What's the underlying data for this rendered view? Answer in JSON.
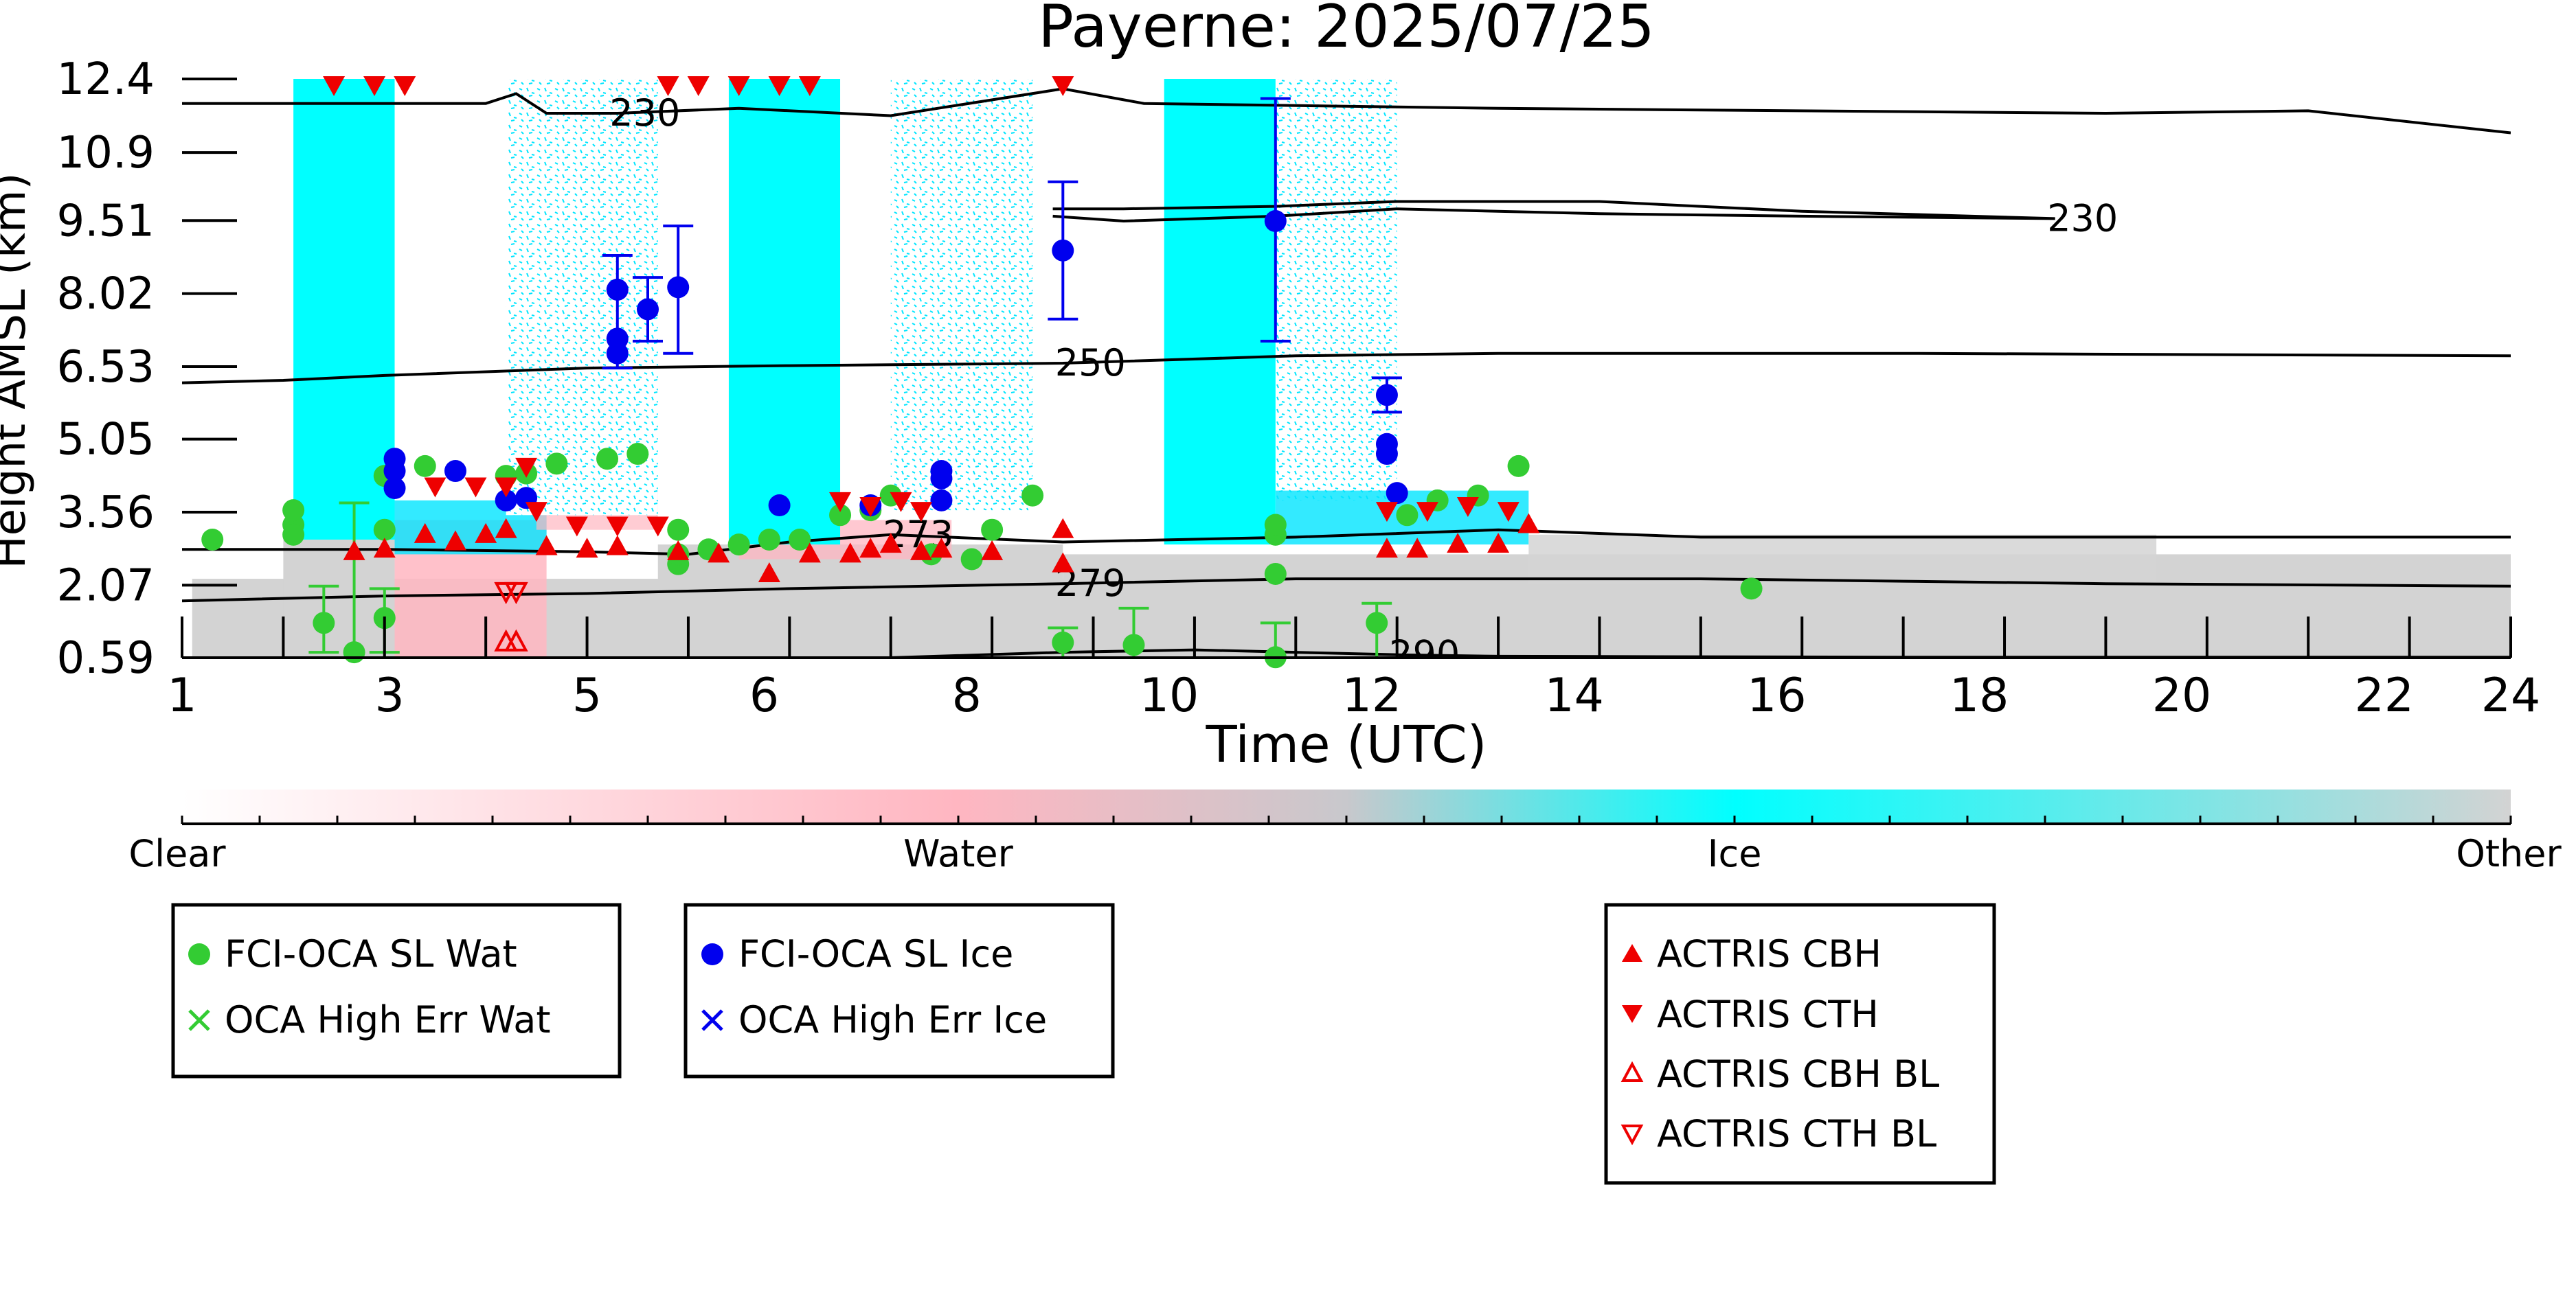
{
  "chart_data": {
    "type": "scatter",
    "title": "Payerne: 2025/07/25",
    "xlabel": "Time (UTC)",
    "ylabel": "Height AMSL (km)",
    "xlim": [
      1,
      24
    ],
    "ylim": [
      0.59,
      12.4
    ],
    "x_ticks": [
      "1",
      "3",
      "5",
      "6",
      "8",
      "10",
      "12",
      "14",
      "16",
      "18",
      "20",
      "22",
      "24"
    ],
    "y_ticks": [
      "0.59",
      "2.07",
      "3.56",
      "5.05",
      "6.53",
      "8.02",
      "9.51",
      "10.9",
      "12.4"
    ],
    "colorbar": {
      "labels": [
        "Clear",
        "Water",
        "Ice",
        "Other"
      ],
      "colors": [
        "#ffffff",
        "#ffb6c1",
        "#00ffff",
        "#d3d3d3"
      ]
    },
    "contours": [
      {
        "label": "230",
        "points": [
          [
            1,
            11.9
          ],
          [
            4,
            11.9
          ],
          [
            4.3,
            12.1
          ],
          [
            4.6,
            11.7
          ],
          [
            5.3,
            11.7
          ],
          [
            6.5,
            11.8
          ],
          [
            8,
            11.65
          ],
          [
            9.7,
            12.2
          ],
          [
            10.5,
            11.9
          ],
          [
            14,
            11.8
          ],
          [
            20,
            11.7
          ],
          [
            22,
            11.75
          ],
          [
            24,
            11.3
          ]
        ]
      },
      {
        "label": "230",
        "points": [
          [
            9.6,
            9.6
          ],
          [
            10.3,
            9.5
          ],
          [
            11.8,
            9.6
          ],
          [
            13,
            9.75
          ],
          [
            15,
            9.65
          ],
          [
            17,
            9.6
          ],
          [
            19.5,
            9.55
          ],
          [
            17,
            9.7
          ],
          [
            15,
            9.9
          ],
          [
            13,
            9.9
          ],
          [
            11.8,
            9.8
          ],
          [
            10.3,
            9.75
          ],
          [
            9.6,
            9.75
          ]
        ]
      },
      {
        "label": "250",
        "points": [
          [
            1,
            6.2
          ],
          [
            2,
            6.25
          ],
          [
            3,
            6.35
          ],
          [
            5,
            6.5
          ],
          [
            7,
            6.55
          ],
          [
            9.7,
            6.6
          ],
          [
            12,
            6.75
          ],
          [
            14,
            6.8
          ],
          [
            18,
            6.8
          ],
          [
            24,
            6.75
          ]
        ]
      },
      {
        "label": "273",
        "points": [
          [
            1,
            2.8
          ],
          [
            3,
            2.8
          ],
          [
            5,
            2.75
          ],
          [
            6,
            2.7
          ],
          [
            7,
            2.95
          ],
          [
            8,
            3.1
          ],
          [
            9.7,
            2.95
          ],
          [
            12,
            3.05
          ],
          [
            14,
            3.2
          ],
          [
            16,
            3.05
          ],
          [
            18,
            3.05
          ],
          [
            24,
            3.05
          ]
        ]
      },
      {
        "label": "279",
        "points": [
          [
            1,
            1.75
          ],
          [
            3,
            1.85
          ],
          [
            5,
            1.9
          ],
          [
            7,
            2.0
          ],
          [
            9.7,
            2.1
          ],
          [
            12,
            2.2
          ],
          [
            14,
            2.2
          ],
          [
            16,
            2.2
          ],
          [
            18,
            2.15
          ],
          [
            20,
            2.1
          ],
          [
            24,
            2.05
          ]
        ]
      },
      {
        "label": "290",
        "points": [
          [
            8,
            0.59
          ],
          [
            9.7,
            0.7
          ],
          [
            11,
            0.75
          ],
          [
            13,
            0.65
          ],
          [
            14,
            0.62
          ],
          [
            18,
            0.6
          ],
          [
            24,
            0.6
          ]
        ]
      }
    ],
    "series": [
      {
        "name": "FCI-OCA SL Wat",
        "color": "#33cc33",
        "marker": "circle",
        "points": [
          [
            1.3,
            3.0
          ],
          [
            2.1,
            3.3
          ],
          [
            2.1,
            3.6
          ],
          [
            2.1,
            3.1
          ],
          [
            2.4,
            1.3
          ],
          [
            2.7,
            0.7
          ],
          [
            3.0,
            1.4
          ],
          [
            3.0,
            3.2
          ],
          [
            3.0,
            4.3
          ],
          [
            3.4,
            4.5
          ],
          [
            4.2,
            4.3
          ],
          [
            4.4,
            4.35
          ],
          [
            4.7,
            4.55
          ],
          [
            5.2,
            4.65
          ],
          [
            5.5,
            4.75
          ],
          [
            5.9,
            2.5
          ],
          [
            5.9,
            2.7
          ],
          [
            5.9,
            3.2
          ],
          [
            6.2,
            2.8
          ],
          [
            6.5,
            2.9
          ],
          [
            6.8,
            3.0
          ],
          [
            7.1,
            3.0
          ],
          [
            7.5,
            3.5
          ],
          [
            7.8,
            3.6
          ],
          [
            8.0,
            3.9
          ],
          [
            8.4,
            2.7
          ],
          [
            8.8,
            2.6
          ],
          [
            9.0,
            3.2
          ],
          [
            9.4,
            3.9
          ],
          [
            9.7,
            0.9
          ],
          [
            10.4,
            0.85
          ],
          [
            11.8,
            3.1
          ],
          [
            11.8,
            3.3
          ],
          [
            11.8,
            2.3
          ],
          [
            11.8,
            0.6
          ],
          [
            12.8,
            1.3
          ],
          [
            13.1,
            3.5
          ],
          [
            13.4,
            3.8
          ],
          [
            13.8,
            3.9
          ],
          [
            14.2,
            4.5
          ],
          [
            16.5,
            2.0
          ]
        ]
      },
      {
        "name": "OCA High Err Wat",
        "color": "#33cc33",
        "marker": "x",
        "points": []
      },
      {
        "name": "FCI-OCA SL Ice",
        "color": "#0000ee",
        "marker": "circle",
        "points": [
          [
            3.1,
            4.65
          ],
          [
            3.1,
            4.4
          ],
          [
            3.1,
            4.05
          ],
          [
            3.7,
            4.4
          ],
          [
            4.2,
            3.8
          ],
          [
            4.4,
            3.85
          ],
          [
            5.3,
            8.1
          ],
          [
            5.3,
            7.1
          ],
          [
            5.3,
            6.8
          ],
          [
            5.6,
            7.7
          ],
          [
            5.9,
            8.15
          ],
          [
            6.9,
            3.7
          ],
          [
            7.8,
            3.7
          ],
          [
            8.5,
            4.4
          ],
          [
            8.5,
            4.25
          ],
          [
            8.5,
            3.8
          ],
          [
            9.7,
            8.9
          ],
          [
            11.8,
            9.5
          ],
          [
            12.9,
            5.95
          ],
          [
            12.9,
            4.95
          ],
          [
            12.9,
            4.75
          ],
          [
            13.0,
            3.95
          ]
        ]
      },
      {
        "name": "OCA High Err Ice",
        "color": "#0000ee",
        "marker": "x",
        "points": []
      },
      {
        "name": "ACTRIS CBH",
        "color": "#ee0000",
        "marker": "triangle-up",
        "points": [
          [
            2.7,
            2.75
          ],
          [
            3.0,
            2.8
          ],
          [
            3.4,
            3.1
          ],
          [
            3.7,
            2.95
          ],
          [
            4.0,
            3.1
          ],
          [
            4.2,
            3.2
          ],
          [
            4.6,
            2.85
          ],
          [
            5.0,
            2.8
          ],
          [
            5.3,
            2.85
          ],
          [
            5.9,
            2.75
          ],
          [
            6.3,
            2.7
          ],
          [
            6.8,
            2.3
          ],
          [
            7.2,
            2.7
          ],
          [
            7.6,
            2.7
          ],
          [
            7.8,
            2.8
          ],
          [
            8.0,
            2.9
          ],
          [
            8.3,
            2.75
          ],
          [
            8.5,
            2.8
          ],
          [
            9.0,
            2.75
          ],
          [
            9.7,
            3.2
          ],
          [
            9.7,
            2.5
          ],
          [
            12.9,
            2.8
          ],
          [
            13.2,
            2.8
          ],
          [
            13.6,
            2.9
          ],
          [
            14.0,
            2.9
          ],
          [
            14.3,
            3.3
          ]
        ]
      },
      {
        "name": "ACTRIS CTH",
        "color": "#ee0000",
        "marker": "triangle-down",
        "points": [
          [
            2.5,
            12.4
          ],
          [
            2.9,
            12.4
          ],
          [
            3.2,
            12.4
          ],
          [
            5.8,
            12.4
          ],
          [
            6.1,
            12.4
          ],
          [
            6.5,
            12.4
          ],
          [
            6.9,
            12.4
          ],
          [
            7.2,
            12.4
          ],
          [
            9.7,
            12.4
          ],
          [
            3.5,
            4.1
          ],
          [
            3.9,
            4.1
          ],
          [
            4.2,
            4.1
          ],
          [
            4.4,
            4.5
          ],
          [
            4.5,
            3.6
          ],
          [
            4.9,
            3.3
          ],
          [
            5.3,
            3.3
          ],
          [
            5.7,
            3.3
          ],
          [
            7.5,
            3.8
          ],
          [
            7.8,
            3.7
          ],
          [
            8.1,
            3.8
          ],
          [
            8.3,
            3.6
          ],
          [
            12.9,
            3.6
          ],
          [
            13.3,
            3.6
          ],
          [
            13.7,
            3.7
          ],
          [
            14.1,
            3.6
          ]
        ]
      },
      {
        "name": "ACTRIS CBH BL",
        "color": "#ee0000",
        "marker": "triangle-up-open",
        "points": [
          [
            4.2,
            0.9
          ],
          [
            4.3,
            0.9
          ]
        ]
      },
      {
        "name": "ACTRIS CTH BL",
        "color": "#ee0000",
        "marker": "triangle-down-open",
        "points": [
          [
            4.2,
            1.95
          ],
          [
            4.3,
            1.95
          ]
        ]
      }
    ],
    "errorbars": [
      {
        "series": "FCI-OCA SL Ice",
        "x": 5.3,
        "lo": 6.5,
        "hi": 8.8
      },
      {
        "series": "FCI-OCA SL Ice",
        "x": 5.6,
        "lo": 7.05,
        "hi": 8.35
      },
      {
        "series": "FCI-OCA SL Ice",
        "x": 5.9,
        "lo": 6.8,
        "hi": 9.4
      },
      {
        "series": "FCI-OCA SL Ice",
        "x": 9.7,
        "lo": 7.5,
        "hi": 10.3
      },
      {
        "series": "FCI-OCA SL Ice",
        "x": 11.8,
        "lo": 7.05,
        "hi": 12.0
      },
      {
        "series": "FCI-OCA SL Ice",
        "x": 12.9,
        "lo": 5.6,
        "hi": 6.3
      },
      {
        "series": "FCI-OCA SL Wat",
        "x": 2.7,
        "lo": 0.59,
        "hi": 3.75
      },
      {
        "series": "FCI-OCA SL Wat",
        "x": 2.4,
        "lo": 0.7,
        "hi": 2.05
      },
      {
        "series": "FCI-OCA SL Wat",
        "x": 3.0,
        "lo": 0.7,
        "hi": 2.0
      },
      {
        "series": "FCI-OCA SL Wat",
        "x": 10.4,
        "lo": 0.59,
        "hi": 1.6
      },
      {
        "series": "FCI-OCA SL Wat",
        "x": 11.8,
        "lo": 0.59,
        "hi": 1.3
      },
      {
        "series": "FCI-OCA SL Wat",
        "x": 12.8,
        "lo": 0.59,
        "hi": 1.7
      },
      {
        "series": "FCI-OCA SL Wat",
        "x": 9.7,
        "lo": 0.59,
        "hi": 1.2
      }
    ],
    "legend": {
      "placement": "below",
      "boxes": [
        [
          "FCI-OCA SL Wat",
          "OCA High Err Wat"
        ],
        [
          "FCI-OCA SL Ice",
          "OCA High Err Ice"
        ],
        [
          "ACTRIS CBH",
          "ACTRIS CTH",
          "ACTRIS CBH BL",
          "ACTRIS CTH BL"
        ]
      ]
    }
  }
}
